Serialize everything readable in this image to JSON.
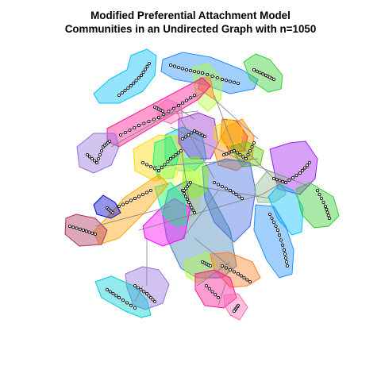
{
  "figure": {
    "title_line1": "Modified Preferential Attachment Model",
    "title_line2": "Communities in an Undirected Graph with n=1050"
  },
  "graph": {
    "edge_color": "#7f7f7f",
    "node_fill": "#000000",
    "community_colors": [
      "#00bfff",
      "#1e90ff",
      "#32cd32",
      "#adff2f",
      "#ff7f24",
      "#ff1493",
      "#ff69b4",
      "#9370db",
      "#00ced1",
      "#ffd700",
      "#00ff7f",
      "#9932cc",
      "#ff8c00",
      "#ff4500",
      "#66cd00",
      "#4169e1",
      "#ffff66",
      "#4682b4",
      "#ff00ff",
      "#7cfc00",
      "#00fa9a",
      "#ffa500",
      "#b03060",
      "#0000cd",
      "#a020f0",
      "#8fbc8f"
    ]
  }
}
